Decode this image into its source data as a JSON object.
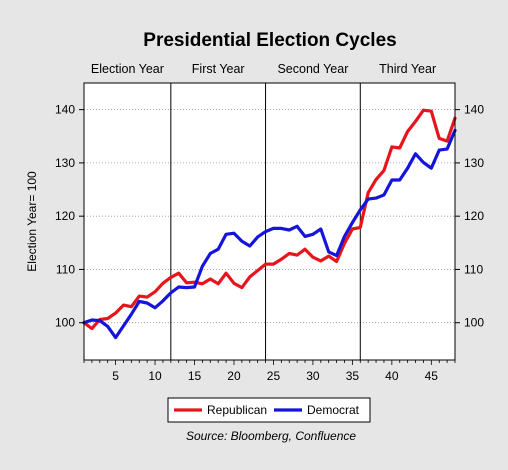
{
  "chart_data": {
    "type": "line",
    "title": "Presidential Election Cycles",
    "ylabel": "Election Year= 100",
    "xlabel": "",
    "source": "Source: Bloomberg, Confluence",
    "sections": [
      "Election Year",
      "First Year",
      "Second Year",
      "Third Year"
    ],
    "section_boundaries": [
      12,
      24,
      36
    ],
    "xlim": [
      1,
      48
    ],
    "ylim": [
      93,
      145
    ],
    "xticks": [
      5,
      10,
      15,
      20,
      25,
      30,
      35,
      40,
      45
    ],
    "yticks": [
      100,
      110,
      120,
      130,
      140
    ],
    "legend_position": "bottom",
    "grid": true,
    "series": [
      {
        "name": "Republican",
        "color": "#e8141b",
        "x": [
          1,
          2,
          3,
          4,
          5,
          6,
          7,
          8,
          9,
          10,
          11,
          12,
          13,
          14,
          15,
          16,
          17,
          18,
          19,
          20,
          21,
          22,
          23,
          24,
          25,
          26,
          27,
          28,
          29,
          30,
          31,
          32,
          33,
          34,
          35,
          36,
          37,
          38,
          39,
          40,
          41,
          42,
          43,
          44,
          45,
          46,
          47,
          48
        ],
        "values": [
          100.0,
          98.9,
          100.6,
          100.8,
          101.8,
          103.3,
          103.0,
          105.0,
          104.8,
          105.8,
          107.4,
          108.5,
          109.3,
          107.5,
          107.6,
          107.3,
          108.2,
          107.3,
          109.3,
          107.4,
          106.6,
          108.6,
          109.8,
          111.0,
          111.0,
          111.9,
          113.0,
          112.7,
          113.8,
          112.3,
          111.6,
          112.5,
          111.5,
          114.9,
          117.6,
          117.9,
          124.4,
          126.9,
          128.6,
          133.0,
          132.8,
          135.9,
          137.8,
          139.9,
          139.7,
          134.6,
          134.1,
          138.4
        ]
      },
      {
        "name": "Democrat",
        "color": "#1414dc",
        "x": [
          1,
          2,
          3,
          4,
          5,
          6,
          7,
          8,
          9,
          10,
          11,
          12,
          13,
          14,
          15,
          16,
          17,
          18,
          19,
          20,
          21,
          22,
          23,
          24,
          25,
          26,
          27,
          28,
          29,
          30,
          31,
          32,
          33,
          34,
          35,
          36,
          37,
          38,
          39,
          40,
          41,
          42,
          43,
          44,
          45,
          46,
          47,
          48
        ],
        "values": [
          100.0,
          100.5,
          100.4,
          99.3,
          97.2,
          99.4,
          101.6,
          104.0,
          103.7,
          102.8,
          104.1,
          105.6,
          106.7,
          106.6,
          106.7,
          110.6,
          113.0,
          113.8,
          116.6,
          116.8,
          115.3,
          114.4,
          116.1,
          117.1,
          117.7,
          117.7,
          117.4,
          118.1,
          116.2,
          116.6,
          117.6,
          113.3,
          112.6,
          116.2,
          118.8,
          121.2,
          123.2,
          123.4,
          124.0,
          126.8,
          126.8,
          129.0,
          131.7,
          130.1,
          129.0,
          132.4,
          132.6,
          136.1
        ]
      }
    ]
  }
}
